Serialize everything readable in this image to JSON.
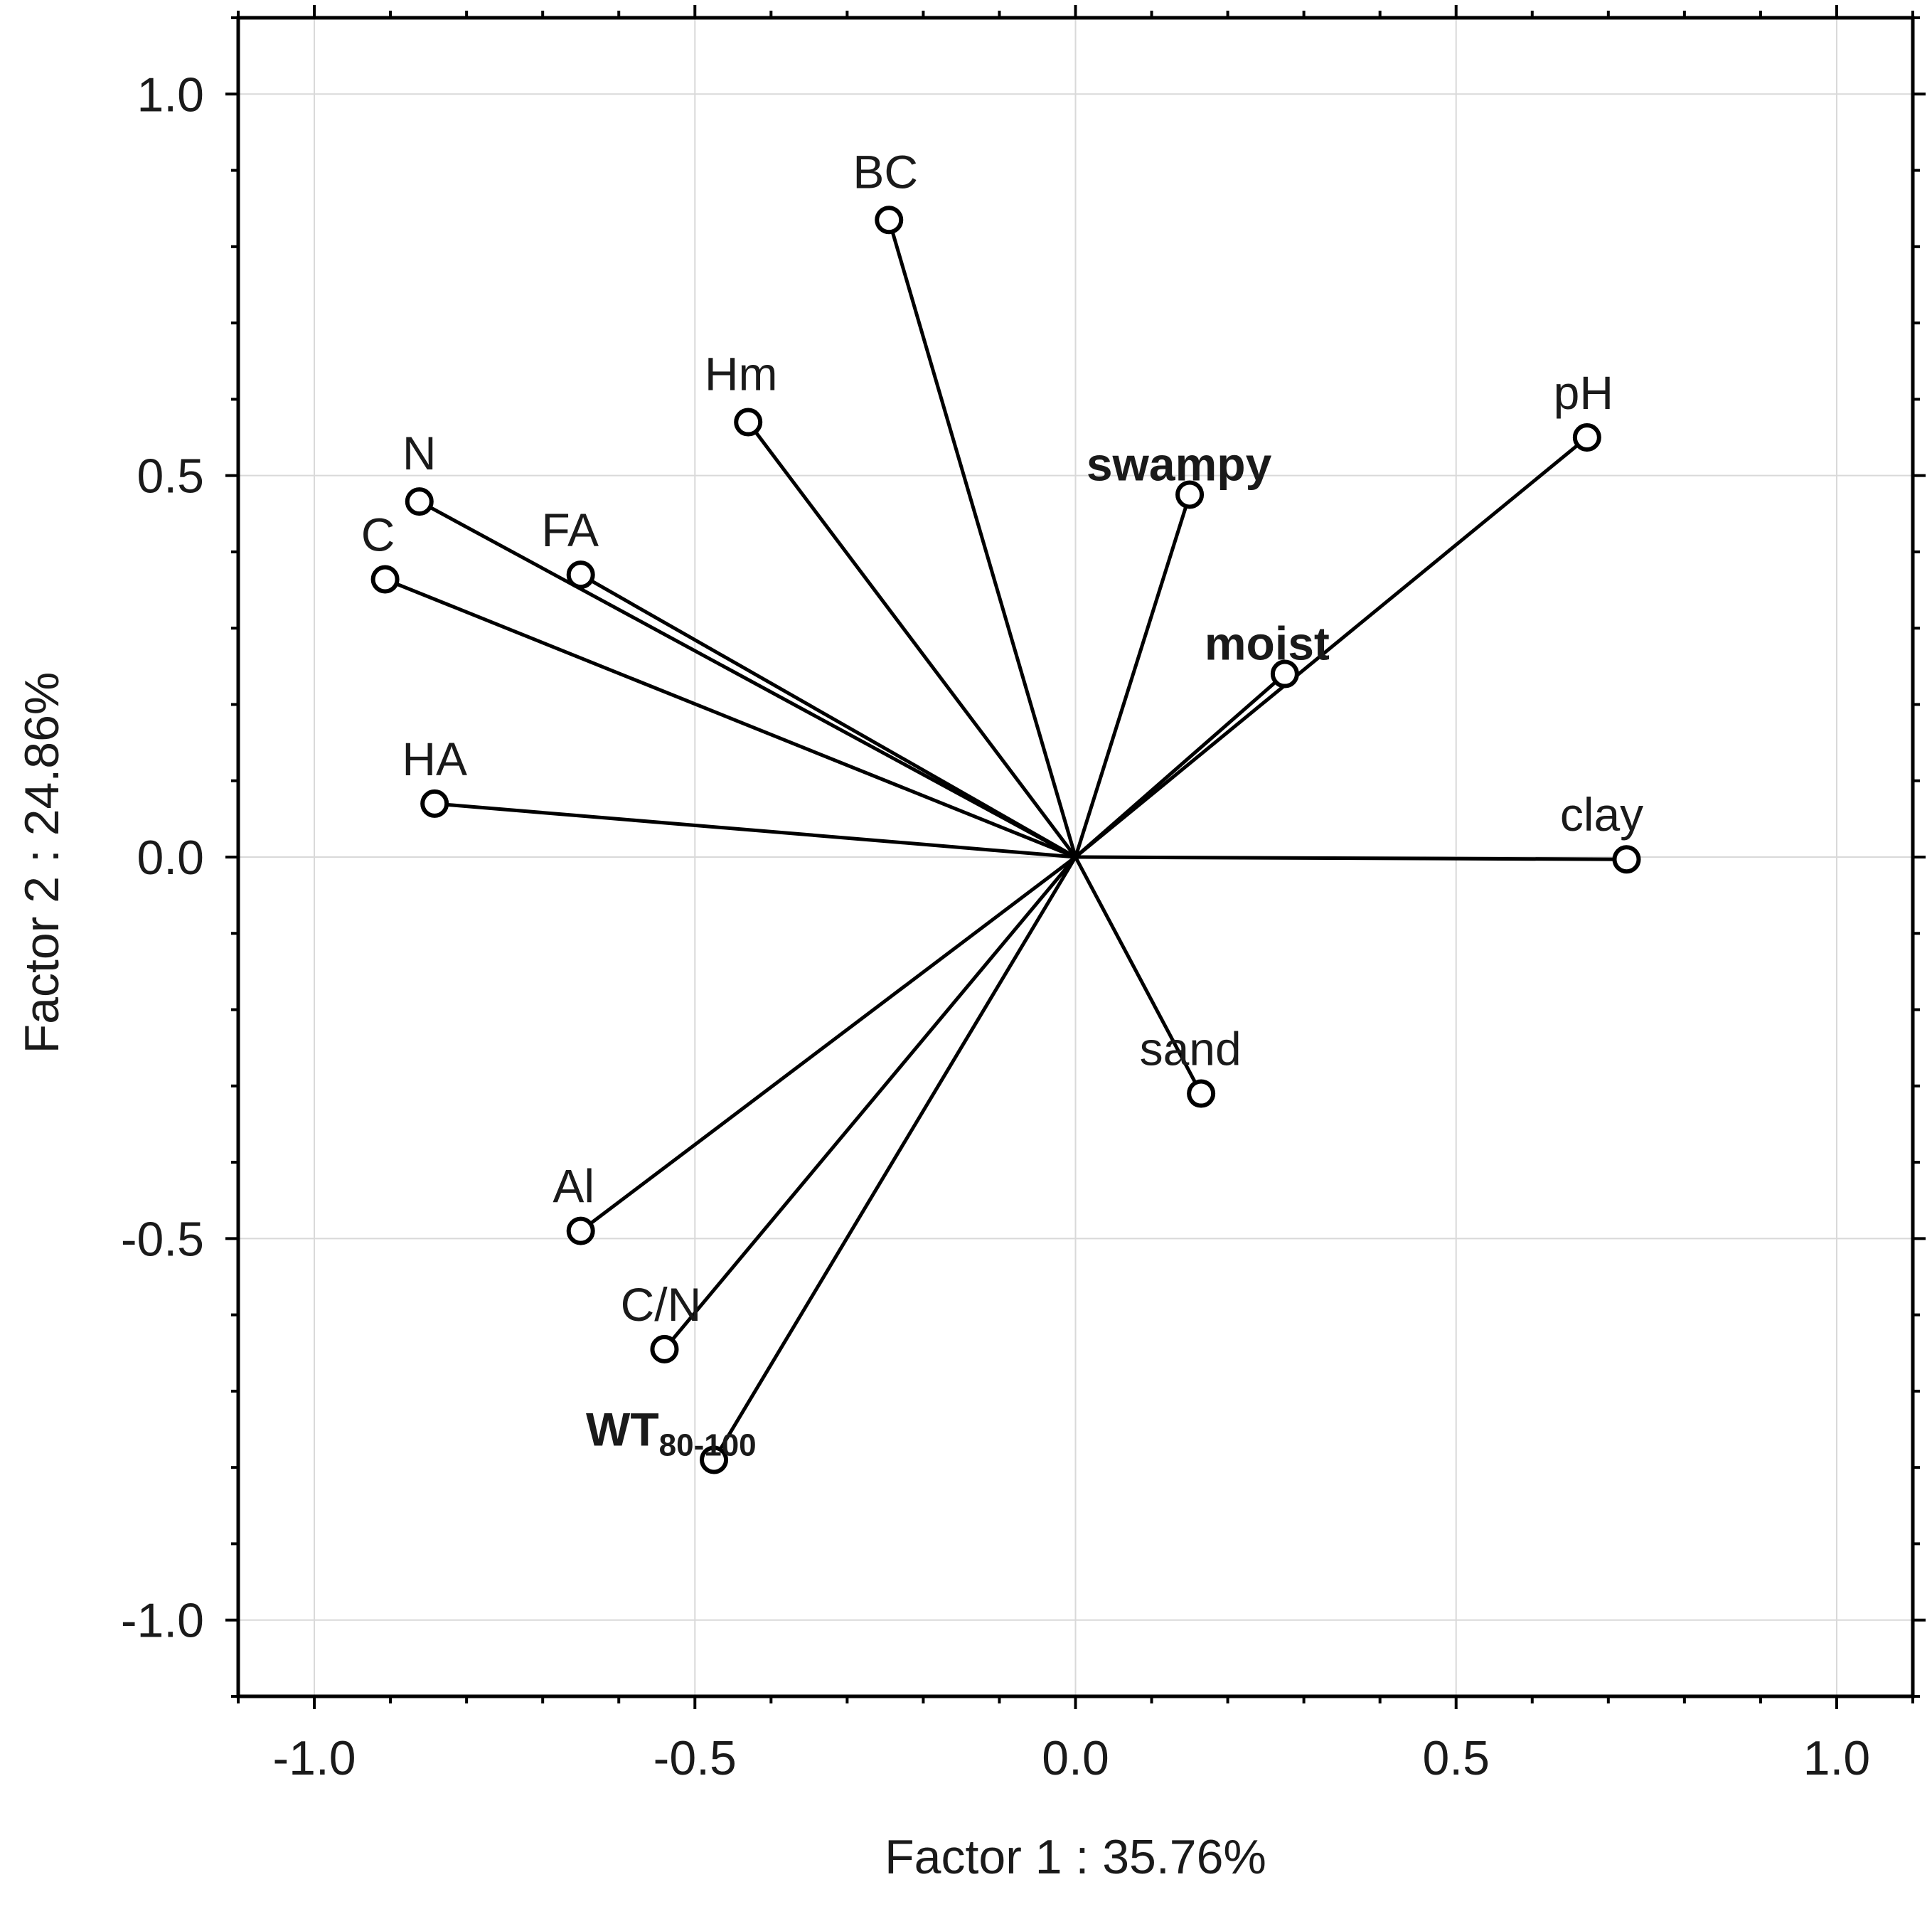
{
  "chart_data": {
    "type": "scatter",
    "subtype": "pca-loading-biplot",
    "title": "",
    "xlabel": "Factor 1 : 35.76%",
    "ylabel": "Factor 2 : 24.86%",
    "xlim": [
      -1.1,
      1.1
    ],
    "ylim": [
      -1.1,
      1.1
    ],
    "xticks": [
      -1.0,
      -0.5,
      0.0,
      0.5,
      1.0
    ],
    "yticks": [
      -1.0,
      -0.5,
      0.0,
      0.5,
      1.0
    ],
    "xtick_labels": [
      "-1.0",
      "-0.5",
      "0.0",
      "0.5",
      "1.0"
    ],
    "ytick_labels": [
      "-1.0",
      "-0.5",
      "0.0",
      "0.5",
      "1.0"
    ],
    "grid": true,
    "vectors_from_origin": true,
    "points": [
      {
        "label": "BC",
        "x": -0.245,
        "y": 0.835,
        "bold": false
      },
      {
        "label": "Hm",
        "x": -0.43,
        "y": 0.57,
        "bold": false
      },
      {
        "label": "N",
        "x": -0.862,
        "y": 0.466,
        "bold": false
      },
      {
        "label": "C",
        "x": -0.907,
        "y": 0.364,
        "bold": false
      },
      {
        "label": "FA",
        "x": -0.65,
        "y": 0.37,
        "bold": false
      },
      {
        "label": "HA",
        "x": -0.842,
        "y": 0.07,
        "bold": false
      },
      {
        "label": "swampy",
        "x": 0.15,
        "y": 0.475,
        "bold": true
      },
      {
        "label": "moist",
        "x": 0.275,
        "y": 0.24,
        "bold": true
      },
      {
        "label": "pH",
        "x": 0.672,
        "y": 0.55,
        "bold": false
      },
      {
        "label": "clay",
        "x": 0.724,
        "y": -0.003,
        "bold": false
      },
      {
        "label": "sand",
        "x": 0.165,
        "y": -0.31,
        "bold": false
      },
      {
        "label": "Al",
        "x": -0.65,
        "y": -0.49,
        "bold": false
      },
      {
        "label": "C/N",
        "x": -0.54,
        "y": -0.645,
        "bold": false
      },
      {
        "label": "WT",
        "subscript": "80-100",
        "x": -0.475,
        "y": -0.79,
        "bold": true
      }
    ]
  }
}
